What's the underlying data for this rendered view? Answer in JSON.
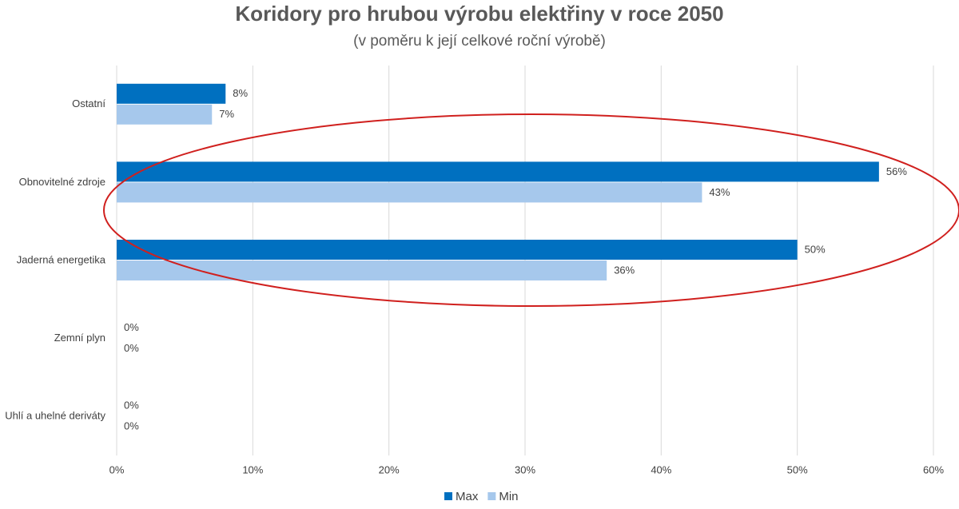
{
  "chart_data": {
    "type": "hbar",
    "title": "Koridory pro hrubou výrobu elektřiny v roce 2050",
    "subtitle": "(v poměru k její celkové roční výrobě)",
    "categories": [
      "Ostatní",
      "Obnovitelné zdroje",
      "Jaderná energetika",
      "Zemní plyn",
      "Uhlí a uhelné deriváty"
    ],
    "series": [
      {
        "name": "Max",
        "color": "#0070c0",
        "values": [
          8,
          56,
          50,
          0,
          0
        ],
        "value_labels": [
          "8%",
          "56%",
          "50%",
          "0%",
          "0%"
        ]
      },
      {
        "name": "Min",
        "color": "#a6c8ec",
        "values": [
          7,
          43,
          36,
          0,
          0
        ],
        "value_labels": [
          "7%",
          "43%",
          "36%",
          "0%",
          "0%"
        ]
      }
    ],
    "xlim": [
      0,
      60
    ],
    "xticks": [
      {
        "value": 0,
        "label": "0%"
      },
      {
        "value": 10,
        "label": "10%"
      },
      {
        "value": 20,
        "label": "20%"
      },
      {
        "value": 30,
        "label": "30%"
      },
      {
        "value": 40,
        "label": "40%"
      },
      {
        "value": 50,
        "label": "50%"
      },
      {
        "value": 60,
        "label": "60%"
      }
    ],
    "grid": true,
    "legend": "bottom"
  }
}
